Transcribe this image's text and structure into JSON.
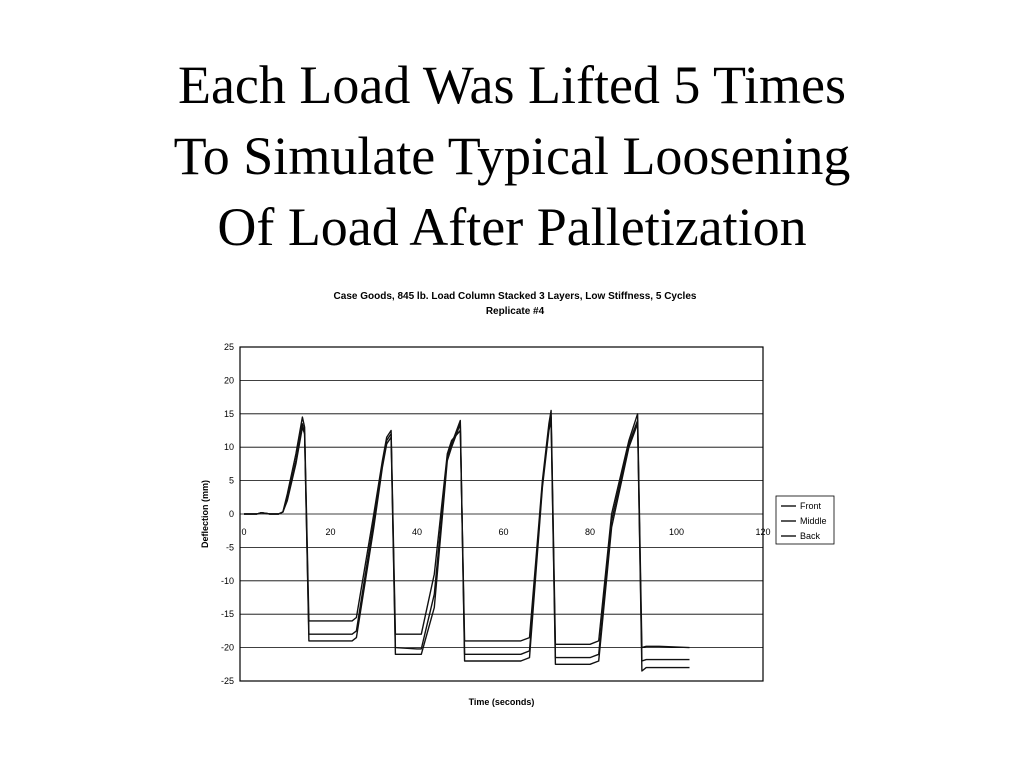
{
  "slide": {
    "title_lines": [
      "Each Load Was Lifted 5 Times",
      "To Simulate Typical Loosening",
      "Of Load After Palletization"
    ]
  },
  "chart_data": {
    "type": "line",
    "title_lines": [
      "Case Goods, 845 lb. Load Column Stacked 3 Layers, Low Stiffness, 5 Cycles",
      "Replicate #4"
    ],
    "xlabel": "Time (seconds)",
    "ylabel": "Deflection (mm)",
    "xlim": [
      0,
      120
    ],
    "ylim": [
      -25,
      25
    ],
    "x_ticks": [
      0,
      20,
      40,
      60,
      80,
      100,
      120
    ],
    "y_ticks": [
      25,
      20,
      15,
      10,
      5,
      0,
      -5,
      -10,
      -15,
      -20,
      -25
    ],
    "grid": "horizontal",
    "legend_position": "right",
    "series": [
      {
        "name": "Front",
        "x": [
          0,
          3,
          4,
          6,
          8,
          9,
          10,
          12,
          13.5,
          14,
          15,
          20,
          25,
          26,
          30,
          32,
          33,
          34,
          35,
          40,
          41,
          44,
          47,
          48,
          50,
          51,
          60,
          64,
          66,
          69,
          70.5,
          71,
          72,
          77,
          80,
          82,
          85,
          89,
          91,
          92,
          93,
          96,
          103
        ],
        "y": [
          0,
          0,
          0.2,
          0,
          0,
          0.3,
          3,
          9,
          14.5,
          13,
          -16,
          -16,
          -16,
          -15.5,
          0,
          8,
          11.5,
          12.5,
          -18,
          -18,
          -18,
          -9,
          9,
          11,
          12.5,
          -19,
          -19,
          -19,
          -18.5,
          5,
          13.5,
          15.5,
          -19.5,
          -19.5,
          -19.5,
          -19,
          0,
          11,
          15,
          -20,
          -19.8,
          -19.8,
          -20
        ]
      },
      {
        "name": "Middle",
        "x": [
          0,
          3,
          4,
          6,
          8,
          9,
          10,
          12,
          13.5,
          14,
          15,
          20,
          25,
          26,
          30,
          32,
          33,
          34,
          35,
          40,
          41,
          44,
          47,
          48,
          50,
          51,
          60,
          64,
          66,
          69,
          70.5,
          71,
          72,
          77,
          80,
          82,
          85,
          89,
          91,
          92,
          93,
          96,
          103
        ],
        "y": [
          0,
          0,
          0.2,
          0,
          0,
          0.3,
          2.5,
          8,
          13.5,
          12,
          -18,
          -18,
          -18,
          -17.5,
          -1,
          7.5,
          11,
          12,
          -20,
          -20.2,
          -20.2,
          -12,
          8.5,
          10.5,
          14,
          -21,
          -21,
          -21,
          -20.5,
          4.5,
          13,
          14.5,
          -21.5,
          -21.5,
          -21.5,
          -21,
          -1,
          10.5,
          14,
          -22,
          -21.8,
          -21.8,
          -21.8
        ]
      },
      {
        "name": "Back",
        "x": [
          0,
          3,
          4,
          6,
          8,
          9,
          10,
          12,
          13.5,
          14,
          15,
          20,
          25,
          26,
          30,
          32,
          33,
          34,
          35,
          40,
          41,
          44,
          47,
          48,
          50,
          51,
          60,
          64,
          66,
          69,
          70.5,
          71,
          72,
          77,
          80,
          82,
          85,
          89,
          91,
          92,
          93,
          96,
          103
        ],
        "y": [
          0,
          0,
          0.2,
          0,
          0,
          0.3,
          2,
          7.5,
          13,
          12,
          -19,
          -19,
          -19,
          -18.5,
          -2,
          7,
          10.5,
          11.5,
          -21,
          -21,
          -21,
          -14,
          8,
          10,
          13.5,
          -22,
          -22,
          -22,
          -21.5,
          4,
          12.5,
          14,
          -22.5,
          -22.5,
          -22.5,
          -22,
          -2,
          10,
          13.5,
          -23.5,
          -23,
          -23,
          -23
        ]
      }
    ]
  }
}
